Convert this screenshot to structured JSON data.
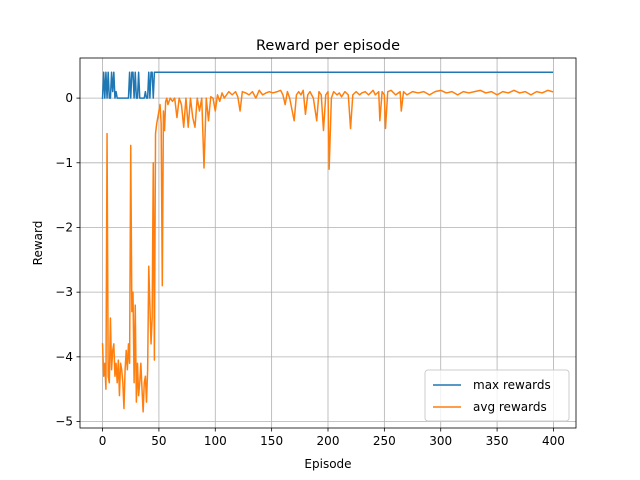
{
  "chart_data": {
    "type": "line",
    "title": "Reward per episode",
    "xlabel": "Episode",
    "ylabel": "Reward",
    "xlim": [
      -20,
      420
    ],
    "ylim": [
      -5.1,
      0.62
    ],
    "xticks": [
      0,
      50,
      100,
      150,
      200,
      250,
      300,
      350,
      400
    ],
    "yticks": [
      -5,
      -4,
      -3,
      -2,
      -1,
      0
    ],
    "ytick_labels": [
      "−5",
      "−4",
      "−3",
      "−2",
      "−1",
      "0"
    ],
    "grid": true,
    "legend_position": "lower-right",
    "series": [
      {
        "name": "max rewards",
        "color": "#1f77b4",
        "points": [
          [
            0,
            0
          ],
          [
            1,
            0.4
          ],
          [
            2,
            0
          ],
          [
            3,
            0.4
          ],
          [
            4,
            0
          ],
          [
            5,
            0.4
          ],
          [
            6,
            0
          ],
          [
            7,
            0
          ],
          [
            8,
            0.4
          ],
          [
            9,
            0.1
          ],
          [
            10,
            0.4
          ],
          [
            11,
            0
          ],
          [
            12,
            0.1
          ],
          [
            13,
            0
          ],
          [
            14,
            0
          ],
          [
            15,
            0
          ],
          [
            16,
            0
          ],
          [
            17,
            0
          ],
          [
            18,
            0
          ],
          [
            19,
            0
          ],
          [
            20,
            0
          ],
          [
            21,
            0
          ],
          [
            22,
            0
          ],
          [
            23,
            0
          ],
          [
            24,
            0.4
          ],
          [
            25,
            0
          ],
          [
            26,
            0.4
          ],
          [
            27,
            0.4
          ],
          [
            28,
            0
          ],
          [
            29,
            0.4
          ],
          [
            30,
            0
          ],
          [
            31,
            0
          ],
          [
            32,
            0.4
          ],
          [
            33,
            0
          ],
          [
            34,
            0
          ],
          [
            35,
            0
          ],
          [
            36,
            0
          ],
          [
            37,
            0
          ],
          [
            38,
            0.1
          ],
          [
            39,
            0
          ],
          [
            40,
            0
          ],
          [
            41,
            0.4
          ],
          [
            42,
            0
          ],
          [
            43,
            0.4
          ],
          [
            44,
            0.4
          ],
          [
            45,
            0
          ],
          [
            46,
            0.4
          ],
          [
            47,
            0.4
          ],
          [
            48,
            0.4
          ],
          [
            50,
            0.4
          ],
          [
            100,
            0.4
          ],
          [
            150,
            0.4
          ],
          [
            200,
            0.4
          ],
          [
            250,
            0.4
          ],
          [
            300,
            0.4
          ],
          [
            350,
            0.4
          ],
          [
            399,
            0.4
          ]
        ]
      },
      {
        "name": "avg rewards",
        "color": "#ff7f0e",
        "points": [
          [
            0,
            -3.8
          ],
          [
            1,
            -4.3
          ],
          [
            2,
            -4.1
          ],
          [
            3,
            -4.5
          ],
          [
            4,
            -0.55
          ],
          [
            5,
            -4.3
          ],
          [
            6,
            -4.4
          ],
          [
            7,
            -3.4
          ],
          [
            8,
            -4.2
          ],
          [
            9,
            -3.9
          ],
          [
            10,
            -3.8
          ],
          [
            11,
            -4.3
          ],
          [
            12,
            -4.1
          ],
          [
            13,
            -4.4
          ],
          [
            14,
            -4.05
          ],
          [
            15,
            -4.6
          ],
          [
            16,
            -4.1
          ],
          [
            17,
            -4.2
          ],
          [
            18,
            -4.4
          ],
          [
            19,
            -4.8
          ],
          [
            20,
            -4.2
          ],
          [
            21,
            -3.9
          ],
          [
            22,
            -4.2
          ],
          [
            23,
            -3.8
          ],
          [
            24,
            -4.1
          ],
          [
            25,
            -0.73
          ],
          [
            26,
            -3.3
          ],
          [
            27,
            -3.0
          ],
          [
            28,
            -4.4
          ],
          [
            29,
            -3.2
          ],
          [
            30,
            -4.7
          ],
          [
            31,
            -4.1
          ],
          [
            32,
            -4.6
          ],
          [
            33,
            -4.4
          ],
          [
            34,
            -4.1
          ],
          [
            35,
            -4.5
          ],
          [
            36,
            -4.85
          ],
          [
            37,
            -4.4
          ],
          [
            38,
            -4.3
          ],
          [
            39,
            -4.7
          ],
          [
            40,
            -4.2
          ],
          [
            41,
            -2.6
          ],
          [
            42,
            -3.2
          ],
          [
            43,
            -3.8
          ],
          [
            44,
            -3.4
          ],
          [
            45,
            -1.0
          ],
          [
            46,
            -4.05
          ],
          [
            47,
            -0.55
          ],
          [
            48,
            -0.4
          ],
          [
            49,
            -0.3
          ],
          [
            50,
            -0.2
          ],
          [
            51,
            -0.1
          ],
          [
            52,
            -0.4
          ],
          [
            53,
            -2.9
          ],
          [
            54,
            -0.2
          ],
          [
            55,
            -0.5
          ],
          [
            56,
            -0.05
          ],
          [
            57,
            0.0
          ],
          [
            58,
            -0.1
          ],
          [
            60,
            0.0
          ],
          [
            62,
            -0.05
          ],
          [
            64,
            0.0
          ],
          [
            66,
            -0.3
          ],
          [
            68,
            0.0
          ],
          [
            70,
            -0.1
          ],
          [
            72,
            -0.45
          ],
          [
            74,
            0.0
          ],
          [
            76,
            -0.45
          ],
          [
            78,
            0.0
          ],
          [
            80,
            -0.3
          ],
          [
            82,
            -0.45
          ],
          [
            84,
            0.0
          ],
          [
            86,
            -0.2
          ],
          [
            88,
            0.0
          ],
          [
            90,
            -1.08
          ],
          [
            92,
            0.0
          ],
          [
            94,
            -0.35
          ],
          [
            96,
            0.02
          ],
          [
            98,
            0.0
          ],
          [
            100,
            -0.2
          ],
          [
            102,
            0.05
          ],
          [
            104,
            -0.05
          ],
          [
            106,
            0.08
          ],
          [
            108,
            0.0
          ],
          [
            110,
            0.05
          ],
          [
            112,
            0.1
          ],
          [
            115,
            0.05
          ],
          [
            118,
            0.1
          ],
          [
            120,
            0.02
          ],
          [
            122,
            -0.2
          ],
          [
            124,
            0.1
          ],
          [
            127,
            0.08
          ],
          [
            130,
            0.05
          ],
          [
            133,
            0.1
          ],
          [
            136,
            0.0
          ],
          [
            139,
            0.12
          ],
          [
            142,
            0.05
          ],
          [
            145,
            0.08
          ],
          [
            148,
            0.1
          ],
          [
            151,
            0.08
          ],
          [
            155,
            0.1
          ],
          [
            158,
            0.12
          ],
          [
            160,
            0.05
          ],
          [
            162,
            -0.1
          ],
          [
            164,
            0.1
          ],
          [
            166,
            0.0
          ],
          [
            170,
            -0.35
          ],
          [
            172,
            0.05
          ],
          [
            174,
            0.1
          ],
          [
            176,
            0.05
          ],
          [
            178,
            0.12
          ],
          [
            180,
            -0.25
          ],
          [
            182,
            0.05
          ],
          [
            184,
            0.1
          ],
          [
            187,
            0.0
          ],
          [
            190,
            -0.35
          ],
          [
            192,
            0.1
          ],
          [
            194,
            0.05
          ],
          [
            196,
            -0.5
          ],
          [
            198,
            0.05
          ],
          [
            200,
            0.1
          ],
          [
            201,
            -1.1
          ],
          [
            203,
            0.0
          ],
          [
            205,
            0.1
          ],
          [
            208,
            0.05
          ],
          [
            210,
            0.08
          ],
          [
            212,
            0.02
          ],
          [
            215,
            0.1
          ],
          [
            218,
            0.05
          ],
          [
            220,
            -0.47
          ],
          [
            222,
            0.05
          ],
          [
            225,
            0.1
          ],
          [
            228,
            0.05
          ],
          [
            230,
            0.08
          ],
          [
            233,
            0.1
          ],
          [
            236,
            0.05
          ],
          [
            240,
            0.12
          ],
          [
            242,
            0.05
          ],
          [
            245,
            0.1
          ],
          [
            246,
            -0.35
          ],
          [
            248,
            0.1
          ],
          [
            250,
            0.05
          ],
          [
            251,
            -0.47
          ],
          [
            253,
            0.1
          ],
          [
            256,
            0.12
          ],
          [
            260,
            0.05
          ],
          [
            264,
            0.1
          ],
          [
            265,
            -0.2
          ],
          [
            267,
            0.1
          ],
          [
            270,
            0.05
          ],
          [
            275,
            0.1
          ],
          [
            280,
            0.08
          ],
          [
            285,
            0.1
          ],
          [
            290,
            0.05
          ],
          [
            295,
            0.1
          ],
          [
            300,
            0.12
          ],
          [
            305,
            0.08
          ],
          [
            310,
            0.1
          ],
          [
            315,
            0.05
          ],
          [
            320,
            0.1
          ],
          [
            325,
            0.08
          ],
          [
            330,
            0.1
          ],
          [
            335,
            0.12
          ],
          [
            340,
            0.08
          ],
          [
            345,
            0.1
          ],
          [
            350,
            0.05
          ],
          [
            355,
            0.1
          ],
          [
            360,
            0.08
          ],
          [
            365,
            0.12
          ],
          [
            370,
            0.08
          ],
          [
            375,
            0.1
          ],
          [
            380,
            0.05
          ],
          [
            385,
            0.1
          ],
          [
            390,
            0.08
          ],
          [
            395,
            0.12
          ],
          [
            399,
            0.1
          ]
        ]
      }
    ]
  }
}
